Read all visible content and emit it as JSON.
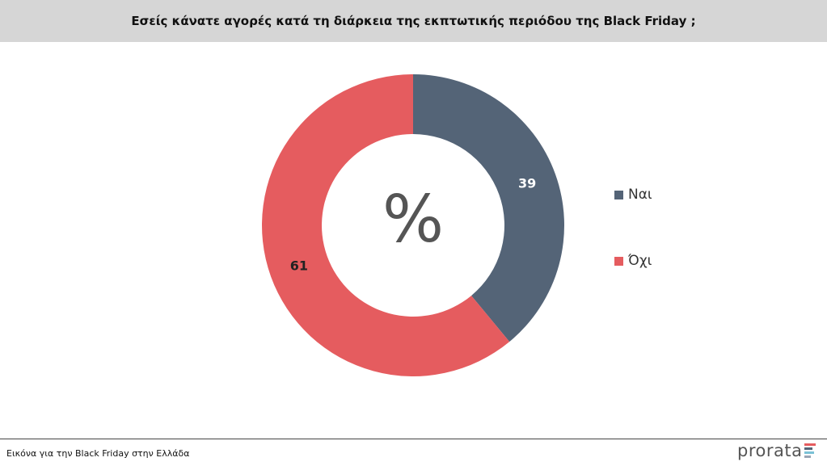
{
  "header": {
    "title": "Εσείς κάνατε αγορές κατά τη διάρκεια της εκπτωτικής περιόδου της Black Friday ;"
  },
  "chart_data": {
    "type": "pie",
    "title": "Εσείς κάνατε αγορές κατά τη διάρκεια της εκπτωτικής περιόδου της Black Friday ;",
    "center_label": "%",
    "categories": [
      "Ναι",
      "Όχι"
    ],
    "values": [
      39,
      61
    ],
    "colors": [
      "#546477",
      "#e55c5f"
    ],
    "legend_position": "right"
  },
  "footer": {
    "caption": "Εικόνα για την Black Friday στην Ελλάδα",
    "logo_text": "prorata"
  },
  "logo_colors": [
    "#e55c5f",
    "#546477",
    "#7ac1d6",
    "#9aa5b4"
  ]
}
